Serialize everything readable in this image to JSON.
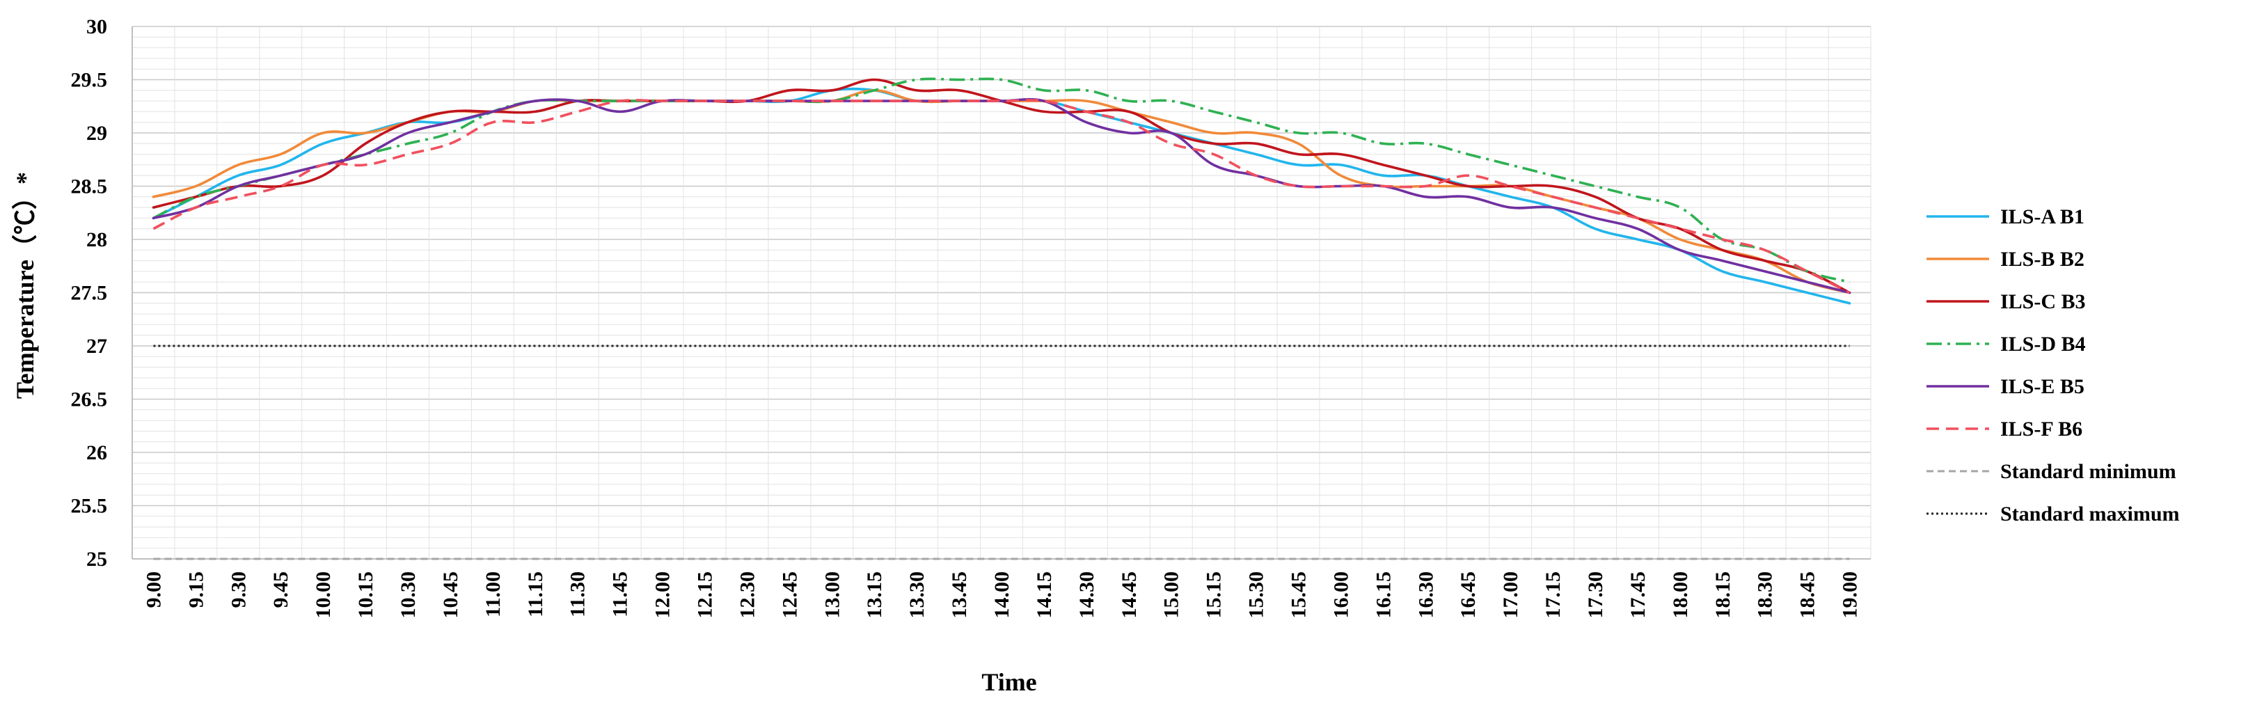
{
  "chart_data": {
    "type": "line",
    "title": "",
    "xlabel": "Time",
    "ylabel": "Temperature（℃）*",
    "ylim": [
      25,
      30
    ],
    "y_ticks": [
      "25",
      "25.5",
      "26",
      "26.5",
      "27",
      "27.5",
      "28",
      "28.5",
      "29",
      "29.5",
      "30"
    ],
    "grid": "horizontal",
    "legend_position": "right",
    "categories": [
      "9.00",
      "9.15",
      "9.30",
      "9.45",
      "10.00",
      "10.15",
      "10.30",
      "10.45",
      "11.00",
      "11.15",
      "11.30",
      "11.45",
      "12.00",
      "12.15",
      "12.30",
      "12.45",
      "13.00",
      "13.15",
      "13.30",
      "13.45",
      "14.00",
      "14.15",
      "14.30",
      "14.45",
      "15.00",
      "15.15",
      "15.30",
      "15.45",
      "16.00",
      "16.15",
      "16.30",
      "16.45",
      "17.00",
      "17.15",
      "17.30",
      "17.45",
      "18.00",
      "18.15",
      "18.30",
      "18.45",
      "19.00"
    ],
    "series": [
      {
        "name": "ILS-A B1",
        "color": "#22b5ec",
        "dash": "solid",
        "values": [
          28.2,
          28.4,
          28.6,
          28.7,
          28.9,
          29.0,
          29.1,
          29.1,
          29.2,
          29.3,
          29.3,
          29.3,
          29.3,
          29.3,
          29.3,
          29.3,
          29.4,
          29.4,
          29.3,
          29.3,
          29.3,
          29.3,
          29.2,
          29.1,
          29.0,
          28.9,
          28.8,
          28.7,
          28.7,
          28.6,
          28.6,
          28.5,
          28.4,
          28.3,
          28.1,
          28.0,
          27.9,
          27.7,
          27.6,
          27.5,
          27.4
        ]
      },
      {
        "name": "ILS-B B2",
        "color": "#f08a3a",
        "dash": "solid",
        "values": [
          28.4,
          28.5,
          28.7,
          28.8,
          29.0,
          29.0,
          29.1,
          29.2,
          29.2,
          29.3,
          29.3,
          29.3,
          29.3,
          29.3,
          29.3,
          29.3,
          29.3,
          29.4,
          29.3,
          29.3,
          29.3,
          29.3,
          29.3,
          29.2,
          29.1,
          29.0,
          29.0,
          28.9,
          28.6,
          28.5,
          28.5,
          28.5,
          28.5,
          28.4,
          28.3,
          28.2,
          28.0,
          27.9,
          27.8,
          27.6,
          27.5
        ]
      },
      {
        "name": "ILS-C B3",
        "color": "#c0151c",
        "dash": "solid",
        "values": [
          28.3,
          28.4,
          28.5,
          28.5,
          28.6,
          28.9,
          29.1,
          29.2,
          29.2,
          29.2,
          29.3,
          29.3,
          29.3,
          29.3,
          29.3,
          29.4,
          29.4,
          29.5,
          29.4,
          29.4,
          29.3,
          29.2,
          29.2,
          29.2,
          29.0,
          28.9,
          28.9,
          28.8,
          28.8,
          28.7,
          28.6,
          28.5,
          28.5,
          28.5,
          28.4,
          28.2,
          28.1,
          27.9,
          27.8,
          27.7,
          27.5
        ]
      },
      {
        "name": "ILS-D B4",
        "color": "#2eb152",
        "dash": "dashdot",
        "values": [
          28.2,
          28.4,
          28.5,
          28.6,
          28.7,
          28.8,
          28.9,
          29.0,
          29.2,
          29.3,
          29.3,
          29.3,
          29.3,
          29.3,
          29.3,
          29.3,
          29.3,
          29.4,
          29.5,
          29.5,
          29.5,
          29.4,
          29.4,
          29.3,
          29.3,
          29.2,
          29.1,
          29.0,
          29.0,
          28.9,
          28.9,
          28.8,
          28.7,
          28.6,
          28.5,
          28.4,
          28.3,
          28.0,
          27.9,
          27.7,
          27.6
        ]
      },
      {
        "name": "ILS-E B5",
        "color": "#7030a0",
        "dash": "solid",
        "values": [
          28.2,
          28.3,
          28.5,
          28.6,
          28.7,
          28.8,
          29.0,
          29.1,
          29.2,
          29.3,
          29.3,
          29.2,
          29.3,
          29.3,
          29.3,
          29.3,
          29.3,
          29.3,
          29.3,
          29.3,
          29.3,
          29.3,
          29.1,
          29.0,
          29.0,
          28.7,
          28.6,
          28.5,
          28.5,
          28.5,
          28.4,
          28.4,
          28.3,
          28.3,
          28.2,
          28.1,
          27.9,
          27.8,
          27.7,
          27.6,
          27.5
        ]
      },
      {
        "name": "ILS-F B6",
        "color": "#f0505e",
        "dash": "dash",
        "values": [
          28.1,
          28.3,
          28.4,
          28.5,
          28.7,
          28.7,
          28.8,
          28.9,
          29.1,
          29.1,
          29.2,
          29.3,
          29.3,
          29.3,
          29.3,
          29.3,
          29.3,
          29.3,
          29.3,
          29.3,
          29.3,
          29.3,
          29.2,
          29.1,
          28.9,
          28.8,
          28.6,
          28.5,
          28.5,
          28.5,
          28.5,
          28.6,
          28.5,
          28.4,
          28.3,
          28.2,
          28.1,
          28.0,
          27.9,
          27.7,
          27.5
        ]
      },
      {
        "name": "Standard minimum",
        "color": "#a6a6a6",
        "dash": "shortdash",
        "values": [
          25,
          25,
          25,
          25,
          25,
          25,
          25,
          25,
          25,
          25,
          25,
          25,
          25,
          25,
          25,
          25,
          25,
          25,
          25,
          25,
          25,
          25,
          25,
          25,
          25,
          25,
          25,
          25,
          25,
          25,
          25,
          25,
          25,
          25,
          25,
          25,
          25,
          25,
          25,
          25,
          25
        ]
      },
      {
        "name": "Standard maximum",
        "color": "#262626",
        "dash": "dot",
        "values": [
          27,
          27,
          27,
          27,
          27,
          27,
          27,
          27,
          27,
          27,
          27,
          27,
          27,
          27,
          27,
          27,
          27,
          27,
          27,
          27,
          27,
          27,
          27,
          27,
          27,
          27,
          27,
          27,
          27,
          27,
          27,
          27,
          27,
          27,
          27,
          27,
          27,
          27,
          27,
          27,
          27
        ]
      }
    ]
  }
}
